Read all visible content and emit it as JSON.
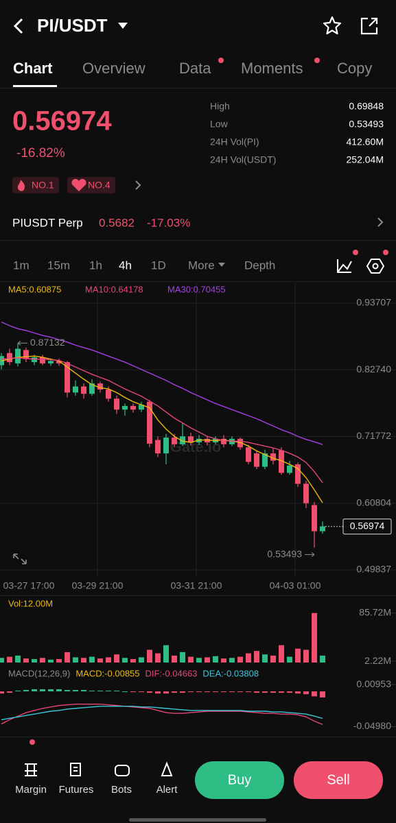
{
  "header": {
    "title": "PI/USDT"
  },
  "tabs": [
    "Chart",
    "Overview",
    "Data",
    "Moments",
    "Copy"
  ],
  "ticker": {
    "price": "0.56974",
    "change": "-16.82%",
    "badges": [
      "NO.1",
      "NO.4"
    ],
    "stats": [
      {
        "label": "High",
        "value": "0.69848"
      },
      {
        "label": "Low",
        "value": "0.53493"
      },
      {
        "label": "24H Vol(PI)",
        "value": "412.60M"
      },
      {
        "label": "24H Vol(USDT)",
        "value": "252.04M"
      }
    ]
  },
  "perp": {
    "name": "PIUSDT Perp",
    "price": "0.5682",
    "change": "-17.03%"
  },
  "intervals": [
    "1m",
    "15m",
    "1h",
    "4h",
    "1D",
    "More",
    "Depth"
  ],
  "chart_data": {
    "type": "candlestick",
    "watermark": "Gate.io",
    "ylim": [
      0.48595,
      0.9709
    ],
    "yticks": [
      0.93707,
      {
        "value": 0.8274,
        "label": "0.82740"
      },
      0.71772,
      0.60804,
      0.49837
    ],
    "x_labels": [
      "03-27 17:00",
      "03-29 21:00",
      "03-31 21:00",
      "04-03 01:00"
    ],
    "max_label": 0.87132,
    "min_label": 0.53493,
    "last_price": 0.56974,
    "open": [
      0.835,
      0.855,
      0.838,
      0.86,
      0.84,
      0.848,
      0.838,
      0.842,
      0.84,
      0.79,
      0.8,
      0.788,
      0.805,
      0.795,
      0.78,
      0.762,
      0.768,
      0.762,
      0.775,
      0.712,
      0.69,
      0.716,
      0.705,
      0.718,
      0.708,
      0.714,
      0.708,
      0.714,
      0.705,
      0.714,
      0.7,
      0.69,
      0.668,
      0.69,
      0.695,
      0.658,
      0.672,
      0.64,
      0.605,
      0.562
    ],
    "close": [
      0.85,
      0.84,
      0.862,
      0.845,
      0.848,
      0.838,
      0.842,
      0.838,
      0.79,
      0.8,
      0.788,
      0.805,
      0.795,
      0.78,
      0.762,
      0.768,
      0.762,
      0.77,
      0.706,
      0.69,
      0.716,
      0.705,
      0.718,
      0.708,
      0.714,
      0.708,
      0.714,
      0.705,
      0.714,
      0.7,
      0.676,
      0.668,
      0.69,
      0.678,
      0.658,
      0.67,
      0.64,
      0.608,
      0.562,
      0.57
    ],
    "high": [
      0.855,
      0.862,
      0.871,
      0.864,
      0.852,
      0.852,
      0.846,
      0.846,
      0.842,
      0.81,
      0.805,
      0.812,
      0.808,
      0.8,
      0.785,
      0.772,
      0.772,
      0.775,
      0.778,
      0.718,
      0.722,
      0.722,
      0.74,
      0.724,
      0.72,
      0.718,
      0.718,
      0.72,
      0.718,
      0.716,
      0.704,
      0.695,
      0.696,
      0.698,
      0.7,
      0.678,
      0.675,
      0.645,
      0.61,
      0.578
    ],
    "low": [
      0.828,
      0.835,
      0.833,
      0.84,
      0.835,
      0.835,
      0.834,
      0.834,
      0.782,
      0.785,
      0.78,
      0.785,
      0.79,
      0.775,
      0.755,
      0.752,
      0.757,
      0.758,
      0.7,
      0.684,
      0.672,
      0.7,
      0.702,
      0.703,
      0.704,
      0.703,
      0.705,
      0.7,
      0.702,
      0.696,
      0.672,
      0.664,
      0.664,
      0.672,
      0.655,
      0.655,
      0.635,
      0.6,
      0.535,
      0.558
    ],
    "up_color": "#2ebd85",
    "down_color": "#f0506e",
    "ma": [
      {
        "name": "MA5:0.60875",
        "color": "#f0b90b",
        "values": [
          0.842,
          0.845,
          0.848,
          0.849,
          0.85,
          0.848,
          0.845,
          0.842,
          0.832,
          0.822,
          0.812,
          0.803,
          0.798,
          0.796,
          0.79,
          0.782,
          0.775,
          0.77,
          0.765,
          0.745,
          0.73,
          0.718,
          0.71,
          0.708,
          0.712,
          0.712,
          0.711,
          0.712,
          0.71,
          0.708,
          0.702,
          0.694,
          0.688,
          0.682,
          0.678,
          0.672,
          0.665,
          0.65,
          0.63,
          0.60875
        ]
      },
      {
        "name": "MA10:0.64178",
        "color": "#e8457a",
        "values": [
          0.845,
          0.846,
          0.847,
          0.846,
          0.845,
          0.845,
          0.844,
          0.843,
          0.838,
          0.832,
          0.826,
          0.82,
          0.815,
          0.81,
          0.803,
          0.796,
          0.79,
          0.784,
          0.776,
          0.768,
          0.758,
          0.748,
          0.74,
          0.732,
          0.725,
          0.718,
          0.714,
          0.711,
          0.71,
          0.71,
          0.708,
          0.705,
          0.702,
          0.699,
          0.695,
          0.69,
          0.684,
          0.675,
          0.66,
          0.64178
        ]
      },
      {
        "name": "MA30:0.70455",
        "color": "#a93fe8",
        "values": [
          0.906,
          0.9,
          0.895,
          0.892,
          0.888,
          0.884,
          0.881,
          0.877,
          0.873,
          0.868,
          0.864,
          0.86,
          0.855,
          0.85,
          0.845,
          0.84,
          0.834,
          0.828,
          0.822,
          0.816,
          0.81,
          0.803,
          0.797,
          0.79,
          0.784,
          0.778,
          0.772,
          0.767,
          0.762,
          0.757,
          0.752,
          0.747,
          0.741,
          0.735,
          0.729,
          0.724,
          0.718,
          0.713,
          0.709,
          0.70455
        ]
      }
    ],
    "volume": {
      "label": "Vol:12.00M",
      "ylim": [
        0,
        95
      ],
      "yticks": [
        {
          "value": 85.72,
          "label": "85.72M"
        },
        {
          "value": 2.22,
          "label": "2.22M"
        }
      ],
      "values": [
        8,
        10,
        12,
        7,
        6,
        8,
        5,
        6,
        18,
        9,
        8,
        10,
        7,
        9,
        14,
        8,
        6,
        9,
        22,
        16,
        30,
        12,
        18,
        10,
        8,
        9,
        11,
        7,
        8,
        10,
        16,
        20,
        14,
        12,
        30,
        10,
        24,
        22,
        85.72,
        12
      ]
    },
    "macd": {
      "legend": [
        {
          "text": "MACD(12,26,9)",
          "color": "#8b8b8b"
        },
        {
          "text": "MACD:-0.00855",
          "color": "#f0b90b"
        },
        {
          "text": "DIF:-0.04663",
          "color": "#e8457a"
        },
        {
          "text": "DEA:-0.03808",
          "color": "#3cc8d8"
        }
      ],
      "ylim": [
        -0.058,
        0.0175
      ],
      "yticks": [
        0.00953,
        {
          "value": -0.0498,
          "label": "-0.04980"
        }
      ],
      "hist": [
        -0.003,
        -0.002,
        0.001,
        0.002,
        0.003,
        0.003,
        0.003,
        0.003,
        0.002,
        0.002,
        0.002,
        0.001,
        0.001,
        0.001,
        0.001,
        0,
        -0.001,
        -0.001,
        -0.002,
        -0.003,
        -0.003,
        -0.002,
        -0.002,
        -0.001,
        -0.001,
        -0.001,
        -0.001,
        -0.001,
        -0.001,
        -0.001,
        -0.001,
        -0.002,
        -0.002,
        -0.002,
        -0.002,
        -0.002,
        -0.003,
        -0.004,
        -0.007,
        -0.00855
      ],
      "dif": [
        -0.046,
        -0.04,
        -0.035,
        -0.03,
        -0.027,
        -0.024,
        -0.022,
        -0.02,
        -0.019,
        -0.018,
        -0.018,
        -0.018,
        -0.018,
        -0.019,
        -0.02,
        -0.021,
        -0.022,
        -0.023,
        -0.024,
        -0.027,
        -0.03,
        -0.031,
        -0.031,
        -0.03,
        -0.029,
        -0.028,
        -0.028,
        -0.028,
        -0.028,
        -0.028,
        -0.029,
        -0.03,
        -0.031,
        -0.031,
        -0.032,
        -0.032,
        -0.033,
        -0.036,
        -0.042,
        -0.04663
      ],
      "dea": [
        -0.04,
        -0.038,
        -0.036,
        -0.034,
        -0.032,
        -0.03,
        -0.028,
        -0.027,
        -0.025,
        -0.024,
        -0.023,
        -0.022,
        -0.021,
        -0.021,
        -0.021,
        -0.021,
        -0.021,
        -0.022,
        -0.022,
        -0.023,
        -0.024,
        -0.025,
        -0.026,
        -0.027,
        -0.027,
        -0.027,
        -0.027,
        -0.027,
        -0.027,
        -0.027,
        -0.028,
        -0.028,
        -0.028,
        -0.029,
        -0.029,
        -0.03,
        -0.031,
        -0.032,
        -0.035,
        -0.03808
      ]
    }
  },
  "nav": [
    "Margin",
    "Futures",
    "Bots",
    "Alert"
  ],
  "actions": {
    "buy": "Buy",
    "sell": "Sell"
  }
}
